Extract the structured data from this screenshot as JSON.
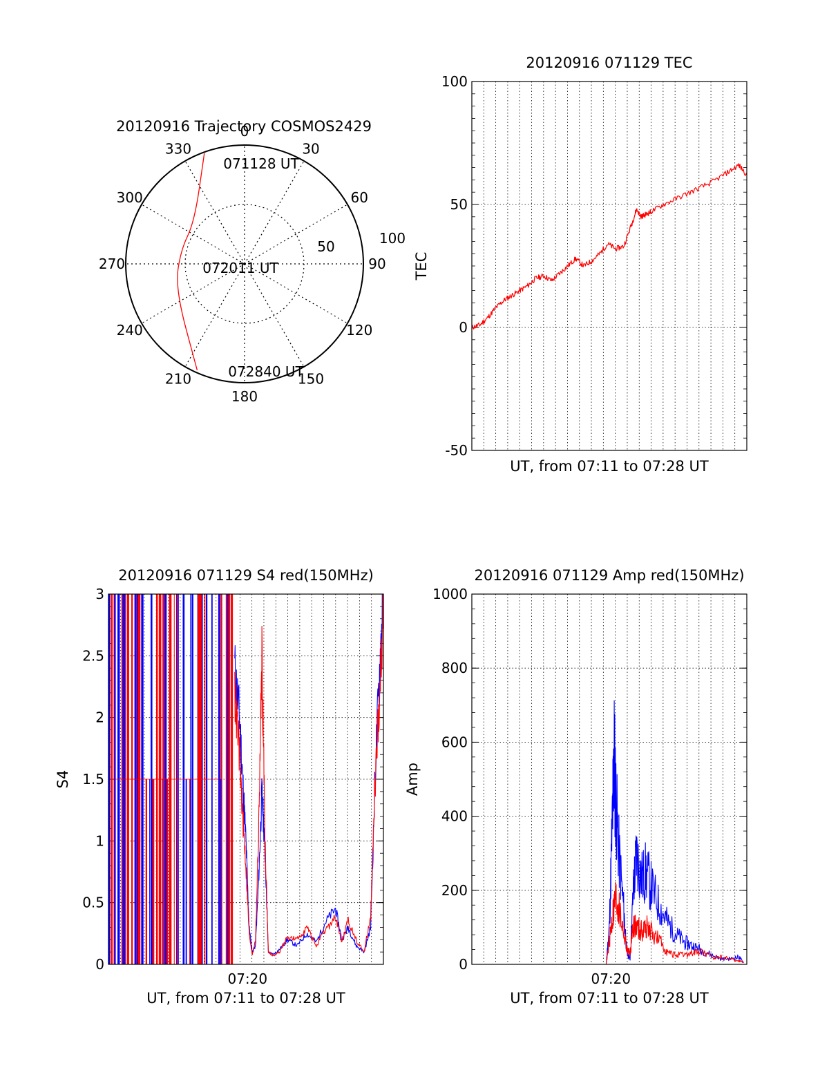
{
  "chart_data": [
    {
      "type": "polar-trajectory",
      "title": "20120916 Trajectory COSMOS2429",
      "azimuth_labels": [
        "0",
        "30",
        "60",
        "90",
        "120",
        "150",
        "180",
        "210",
        "240",
        "270",
        "300",
        "330"
      ],
      "radius_labels": [
        "50",
        "100"
      ],
      "rlim": [
        0,
        100
      ],
      "start_label": "071128 UT",
      "mid_label": "072011 UT",
      "end_label": "072840 UT",
      "series": [
        {
          "color": "#ff0000",
          "points": [
            [
              340,
              99
            ],
            [
              310,
              55
            ],
            [
              282,
              55
            ],
            [
              250,
              62
            ],
            [
              204,
              98
            ]
          ]
        }
      ]
    },
    {
      "type": "line",
      "title": "20120916 071129 TEC",
      "xlabel": "UT, from 07:11 to 07:28 UT",
      "ylabel": "TEC",
      "xlim": [
        0,
        17.2
      ],
      "ylim": [
        -50,
        100
      ],
      "yticks": [
        -50,
        0,
        50,
        100
      ],
      "grid": true,
      "series": [
        {
          "color": "#ff0000",
          "x": [
            0,
            0.5,
            1,
            1.5,
            2,
            2.5,
            3,
            3.5,
            4,
            4.5,
            5,
            5.5,
            6,
            6.5,
            7,
            7.5,
            8,
            8.5,
            9,
            9.5,
            10,
            10.3,
            10.6,
            10.9,
            11.2,
            12,
            13,
            14,
            15,
            16,
            16.7,
            17.2
          ],
          "y": [
            0,
            1,
            4,
            8,
            11,
            13,
            15,
            17,
            20,
            21,
            19,
            22,
            25,
            28,
            25,
            27,
            30,
            34,
            32,
            33,
            42,
            48,
            45,
            46,
            47,
            50,
            53,
            56,
            59,
            63,
            66,
            62
          ]
        }
      ]
    },
    {
      "type": "line",
      "title": "20120916 071129 S4 red(150MHz)",
      "xlabel": "UT, from 07:11 to 07:28 UT",
      "ylabel": "S4",
      "xlim": [
        0,
        17.2
      ],
      "ylim": [
        0,
        3
      ],
      "yticks": [
        "0",
        "0.5",
        "1",
        "1.5",
        "2",
        "2.5",
        "3"
      ],
      "xticks": [
        {
          "x": 8.7,
          "label": "07:20"
        }
      ],
      "grid": true,
      "series": [
        {
          "color": "#0000ff",
          "x": [
            7.9,
            8.2,
            8.4,
            8.6,
            8.8,
            9.0,
            9.2,
            9.4,
            9.6,
            9.8,
            10.0,
            10.3,
            10.7,
            11.2,
            11.8,
            12.4,
            13.0,
            13.6,
            14.2,
            14.6,
            15.0,
            15.5,
            16.0,
            16.4,
            16.7,
            17.0,
            17.2
          ],
          "y": [
            2.4,
            2.0,
            1.5,
            1.0,
            0.3,
            0.1,
            0.15,
            0.7,
            1.4,
            0.9,
            0.1,
            0.08,
            0.12,
            0.2,
            0.15,
            0.25,
            0.18,
            0.35,
            0.45,
            0.2,
            0.3,
            0.15,
            0.1,
            0.3,
            1.6,
            2.5,
            3.0
          ]
        },
        {
          "color": "#ff0000",
          "x": [
            7.9,
            8.2,
            8.4,
            8.6,
            8.8,
            9.0,
            9.2,
            9.4,
            9.6,
            9.8,
            10.0,
            10.3,
            10.7,
            11.2,
            11.8,
            12.4,
            13.0,
            13.6,
            14.2,
            14.6,
            15.0,
            15.5,
            16.0,
            16.4,
            16.7,
            17.0,
            17.2
          ],
          "y": [
            2.2,
            1.7,
            1.2,
            0.8,
            0.25,
            0.08,
            0.2,
            1.1,
            2.5,
            1.0,
            0.1,
            0.07,
            0.1,
            0.22,
            0.2,
            0.3,
            0.15,
            0.28,
            0.38,
            0.18,
            0.35,
            0.2,
            0.1,
            0.4,
            1.5,
            2.3,
            2.9
          ]
        }
      ],
      "saturated_spikes": {
        "xrange": [
          0,
          7.8
        ],
        "colors": [
          "#0000ff",
          "#ff0000"
        ]
      }
    },
    {
      "type": "line",
      "title": "20120916 071129 Amp red(150MHz)",
      "xlabel": "UT, from 07:11 to 07:28 UT",
      "ylabel": "Amp",
      "xlim": [
        0,
        17.2
      ],
      "ylim": [
        0,
        1000
      ],
      "yticks": [
        0,
        200,
        400,
        600,
        800,
        1000
      ],
      "xticks": [
        {
          "x": 8.7,
          "label": "07:20"
        }
      ],
      "grid": true,
      "series": [
        {
          "color": "#0000ff",
          "x": [
            0,
            8.4,
            8.6,
            8.8,
            8.9,
            9.0,
            9.2,
            9.5,
            9.7,
            9.9,
            10.1,
            10.3,
            10.6,
            10.9,
            11.3,
            11.8,
            12.3,
            12.8,
            13.3,
            13.8,
            14.3,
            15.0,
            15.6,
            16.2,
            16.7,
            17.0
          ],
          "y": [
            0,
            0,
            100,
            400,
            570,
            450,
            300,
            150,
            30,
            15,
            200,
            300,
            230,
            250,
            200,
            150,
            110,
            80,
            60,
            50,
            40,
            25,
            15,
            15,
            20,
            5
          ]
        },
        {
          "color": "#ff0000",
          "x": [
            0,
            8.4,
            8.6,
            8.8,
            9.0,
            9.2,
            9.5,
            9.7,
            9.9,
            10.1,
            10.3,
            10.6,
            10.9,
            11.3,
            11.8,
            12.3,
            12.8,
            13.3,
            13.8,
            14.3,
            15.0,
            15.6,
            16.2,
            16.7,
            17.0
          ],
          "y": [
            0,
            0,
            60,
            130,
            180,
            150,
            90,
            40,
            30,
            110,
            100,
            90,
            100,
            85,
            60,
            30,
            25,
            25,
            30,
            35,
            20,
            20,
            15,
            10,
            5
          ]
        }
      ]
    }
  ]
}
